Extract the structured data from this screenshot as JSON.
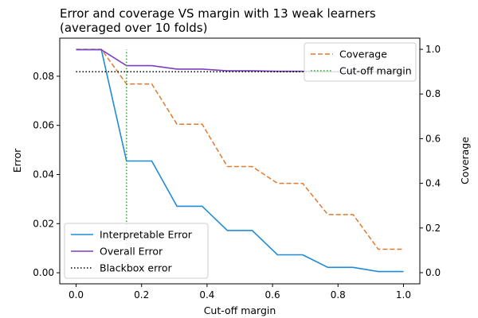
{
  "chart_data": {
    "type": "line",
    "title": [
      "Error and coverage VS margin with 13 weak learners",
      "(averaged over 10 folds)"
    ],
    "xlabel": "Cut-off margin",
    "ylabel": "Error",
    "y2label": "Coverage",
    "xlim": [
      -0.05,
      1.05
    ],
    "ylim": [
      -0.0045,
      0.0955
    ],
    "y2lim": [
      -0.05,
      1.05
    ],
    "xticks": [
      "0.0",
      "0.2",
      "0.4",
      "0.6",
      "0.8",
      "1.0"
    ],
    "yticks": [
      "0.00",
      "0.02",
      "0.04",
      "0.06",
      "0.08"
    ],
    "y2ticks": [
      "0.0",
      "0.2",
      "0.4",
      "0.6",
      "0.8",
      "1.0"
    ],
    "x": [
      0.0,
      0.077,
      0.154,
      0.231,
      0.308,
      0.385,
      0.462,
      0.538,
      0.615,
      0.692,
      0.769,
      0.846,
      0.923,
      1.0
    ],
    "series": [
      {
        "name": "Interpretable Error",
        "axis": "left",
        "color": "#1f8bd6",
        "style": "solid",
        "values": [
          0.0908,
          0.0908,
          0.0455,
          0.0455,
          0.0271,
          0.0271,
          0.0172,
          0.0172,
          0.0073,
          0.0073,
          0.0022,
          0.0022,
          0.0005,
          0.0005
        ]
      },
      {
        "name": "Overall Error",
        "axis": "left",
        "color": "#7b3fbf",
        "style": "solid",
        "values": [
          0.0908,
          0.0908,
          0.0843,
          0.0843,
          0.0829,
          0.0829,
          0.0822,
          0.0822,
          0.082,
          0.082,
          0.0818,
          0.0818,
          0.0818,
          0.0818
        ]
      },
      {
        "name": "Blackbox error",
        "axis": "left",
        "color": "#000000",
        "style": "dotted",
        "values": [
          0.0818,
          0.0818,
          0.0818,
          0.0818,
          0.0818,
          0.0818,
          0.0818,
          0.0818,
          0.0818,
          0.0818,
          0.0818,
          0.0818,
          0.0818,
          0.0818
        ]
      },
      {
        "name": "Coverage",
        "axis": "right",
        "color": "#e07a2f",
        "style": "dashed",
        "values": [
          1.0,
          1.0,
          0.845,
          0.845,
          0.665,
          0.665,
          0.475,
          0.475,
          0.4,
          0.4,
          0.26,
          0.26,
          0.105,
          0.105
        ]
      }
    ],
    "cutoff": {
      "name": "Cut-off margin",
      "x": 0.154,
      "color": "#2ca02c",
      "style": "dotted",
      "y_range": [
        0.0,
        0.0908
      ]
    },
    "legends": {
      "left": {
        "placement": "lower-left",
        "entries": [
          "Interpretable Error",
          "Overall Error",
          "Blackbox error"
        ]
      },
      "right": {
        "placement": "upper-right",
        "entries": [
          "Coverage",
          "Cut-off margin"
        ]
      }
    },
    "grid": false
  }
}
